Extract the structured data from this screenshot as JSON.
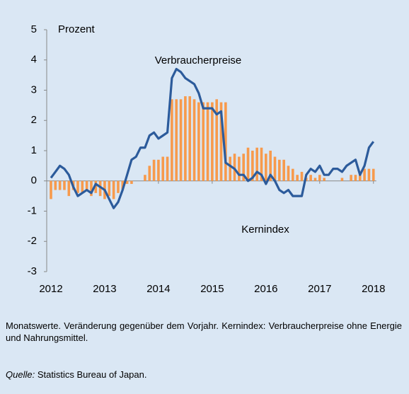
{
  "chart_data": {
    "type": "bar",
    "y_label": "Prozent",
    "categories": [
      "2012",
      null,
      null,
      null,
      null,
      null,
      null,
      null,
      null,
      null,
      null,
      null,
      "2013",
      null,
      null,
      null,
      null,
      null,
      null,
      null,
      null,
      null,
      null,
      null,
      "2014",
      null,
      null,
      null,
      null,
      null,
      null,
      null,
      null,
      null,
      null,
      null,
      "2015",
      null,
      null,
      null,
      null,
      null,
      null,
      null,
      null,
      null,
      null,
      null,
      "2016",
      null,
      null,
      null,
      null,
      null,
      null,
      null,
      null,
      null,
      null,
      null,
      "2017",
      null,
      null,
      null,
      null,
      null,
      null,
      null,
      null,
      null,
      null,
      null,
      "2018"
    ],
    "series": [
      {
        "name": "Kernindex",
        "type": "bar",
        "color": "#f79a4c",
        "values": [
          -0.6,
          -0.3,
          -0.3,
          -0.3,
          -0.5,
          -0.3,
          -0.4,
          -0.4,
          -0.3,
          -0.5,
          -0.4,
          -0.5,
          -0.6,
          -0.5,
          -0.6,
          -0.4,
          -0.3,
          -0.1,
          -0.1,
          0.0,
          0.0,
          0.2,
          0.5,
          0.7,
          0.7,
          0.8,
          0.8,
          2.7,
          2.7,
          2.7,
          2.8,
          2.8,
          2.7,
          2.6,
          2.6,
          2.6,
          2.6,
          2.7,
          2.6,
          2.6,
          0.8,
          0.9,
          0.8,
          0.9,
          1.1,
          1.0,
          1.1,
          1.1,
          0.9,
          1.0,
          0.8,
          0.7,
          0.7,
          0.5,
          0.4,
          0.2,
          0.3,
          0.1,
          0.2,
          0.1,
          0.2,
          0.1,
          0.0,
          0.0,
          0.0,
          0.1,
          0.0,
          0.2,
          0.2,
          0.2,
          0.4,
          0.4,
          0.4
        ]
      },
      {
        "name": "Verbraucherpreise",
        "type": "line",
        "color": "#2c5b9b",
        "values": [
          0.1,
          0.3,
          0.5,
          0.4,
          0.2,
          -0.2,
          -0.5,
          -0.4,
          -0.3,
          -0.4,
          -0.1,
          -0.2,
          -0.3,
          -0.6,
          -0.9,
          -0.7,
          -0.3,
          0.2,
          0.7,
          0.8,
          1.1,
          1.1,
          1.5,
          1.6,
          1.4,
          1.5,
          1.6,
          3.4,
          3.7,
          3.6,
          3.4,
          3.3,
          3.2,
          2.9,
          2.4,
          2.4,
          2.4,
          2.2,
          2.3,
          0.6,
          0.5,
          0.4,
          0.2,
          0.2,
          0.0,
          0.1,
          0.3,
          0.2,
          -0.1,
          0.2,
          0.0,
          -0.3,
          -0.4,
          -0.3,
          -0.5,
          -0.5,
          -0.5,
          0.2,
          0.4,
          0.3,
          0.5,
          0.2,
          0.2,
          0.4,
          0.4,
          0.3,
          0.5,
          0.6,
          0.7,
          0.2,
          0.5,
          1.1,
          1.3
        ]
      }
    ],
    "ylim": [
      -3,
      5
    ],
    "yticks": [
      -3,
      -2,
      -1,
      0,
      1,
      2,
      3,
      4,
      5
    ],
    "note": "Monatswerte. Veränderung gegenüber dem Vorjahr. Kernindex: Verbraucherpreise ohne Energie und Nahrungsmittel.",
    "source": {
      "label": "Quelle:",
      "text": "Statistics Bureau of Japan."
    }
  }
}
